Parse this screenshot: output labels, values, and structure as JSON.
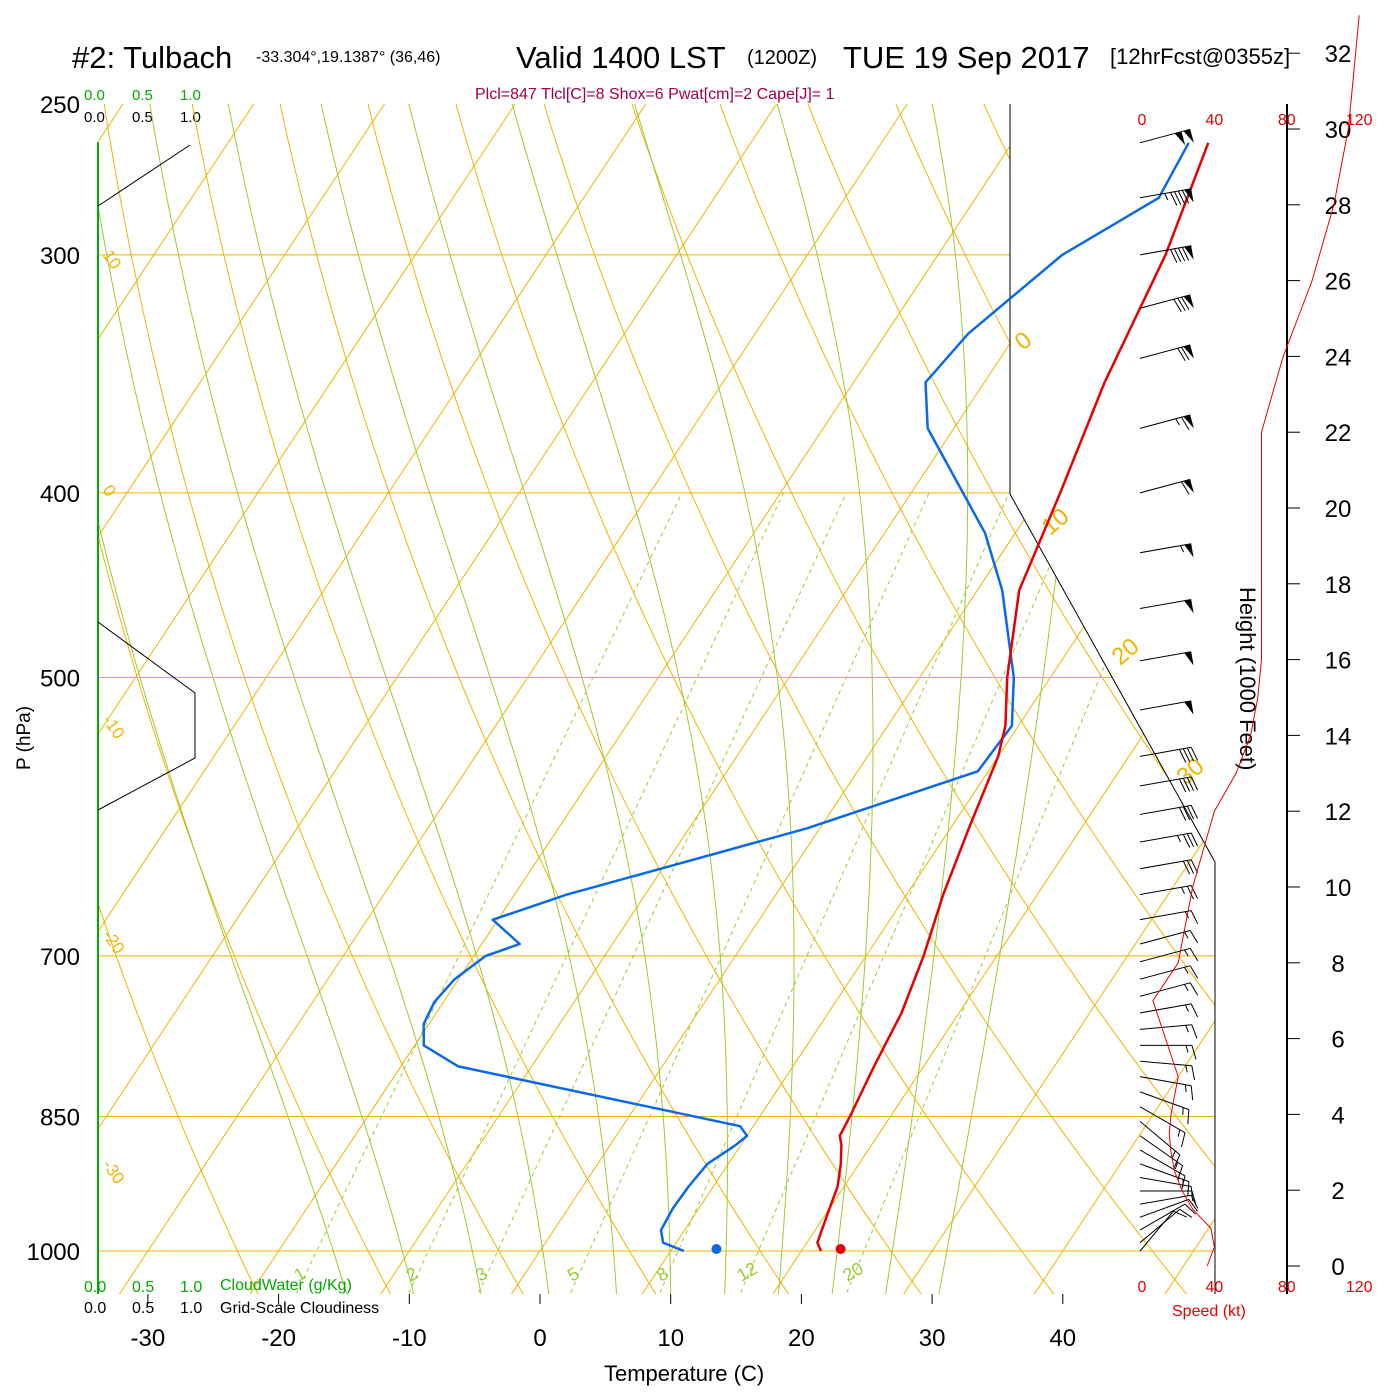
{
  "header": {
    "station": "#2: Tulbach",
    "coords": "-33.304°,19.1387° (36,46)",
    "valid": "Valid 1400 LST",
    "zulu": "(1200Z)",
    "date": "TUE 19 Sep 2017",
    "forecast": "[12hrFcst@0355z]",
    "params": "Plcl=847 Tlcl[C]=8 Shox=6 Pwat[cm]=2 Cape[J]= 1"
  },
  "legend": {
    "cloudwater_label": "CloudWater (g/Kg)",
    "cloudiness_label": "Grid-Scale Cloudiness",
    "scale_ticks": [
      "0.0",
      "0.5",
      "1.0"
    ]
  },
  "colors": {
    "temperature": "#e60000",
    "dewpoint": "#0a6ae6",
    "isotherm": "#f0b400",
    "mixing": "#99cc33",
    "green": "#00aa00",
    "params": "#a0004a"
  },
  "chart_data": {
    "type": "skew-t",
    "xlabel": "Temperature (C)",
    "ylabel": "P (hPa)",
    "x_ticks": [
      "-30",
      "-20",
      "-10",
      "0",
      "10",
      "20",
      "30",
      "40"
    ],
    "pressure_ticks": [
      "250",
      "300",
      "400",
      "500",
      "700",
      "850",
      "1000"
    ],
    "pressure_levels": [
      250,
      300,
      400,
      500,
      700,
      850,
      1000
    ],
    "height_axis_label": "Height (1000 Feet)",
    "height_ticks": [
      "0",
      "2",
      "4",
      "6",
      "8",
      "10",
      "12",
      "14",
      "16",
      "18",
      "20",
      "22",
      "24",
      "26",
      "28",
      "30",
      "32"
    ],
    "speed_axis_label": "Speed (kt)",
    "speed_ticks": [
      "0",
      "40",
      "80",
      "120"
    ],
    "isotherm_labels": [
      "10",
      "0",
      "-10",
      "-20",
      "-30",
      "0",
      "10",
      "20",
      "30"
    ],
    "mixing_ratio_labels": [
      "1",
      "2",
      "3",
      "5",
      "8",
      "12",
      "20"
    ],
    "temperature": {
      "pressure": [
        1000,
        990,
        975,
        950,
        925,
        900,
        880,
        870,
        850,
        800,
        750,
        700,
        650,
        600,
        550,
        530,
        500,
        450,
        400,
        350,
        300,
        262
      ],
      "value": [
        21.5,
        20.8,
        20.5,
        20.0,
        19.5,
        18.6,
        17.7,
        17.1,
        16.9,
        16.2,
        15.6,
        14.4,
        12.8,
        11.4,
        10.0,
        9.0,
        6.7,
        3.2,
        1.4,
        -0.8,
        -2.6,
        -5.0
      ]
    },
    "dewpoint": {
      "pressure": [
        1000,
        990,
        975,
        950,
        925,
        900,
        880,
        870,
        860,
        800,
        780,
        760,
        740,
        720,
        700,
        690,
        670,
        650,
        600,
        560,
        530,
        500,
        450,
        420,
        370,
        350,
        330,
        300,
        280,
        262
      ],
      "value": [
        11.0,
        9.0,
        8.2,
        8.0,
        8.1,
        8.4,
        9.6,
        10.0,
        9.0,
        -15.6,
        -19.3,
        -20.4,
        -20.7,
        -20.3,
        -19.1,
        -17.1,
        -20.4,
        -16.0,
        -1.0,
        9.2,
        9.5,
        7.2,
        1.9,
        -2.3,
        -12.0,
        -14.5,
        -13.7,
        -10.5,
        -6.0,
        -6.5
      ]
    },
    "surface_points": {
      "temperature": 23.0,
      "dewpoint": 13.5
    },
    "wind": {
      "pressure": [
        1000,
        990,
        975,
        960,
        945,
        930,
        915,
        900,
        885,
        870,
        855,
        840,
        825,
        810,
        795,
        780,
        765,
        750,
        735,
        720,
        705,
        690,
        670,
        650,
        630,
        610,
        590,
        570,
        550,
        520,
        490,
        460,
        430,
        400,
        370,
        340,
        320,
        300,
        280,
        262
      ],
      "dir": [
        320,
        310,
        300,
        290,
        280,
        270,
        260,
        250,
        240,
        235,
        230,
        240,
        250,
        260,
        265,
        270,
        275,
        280,
        285,
        285,
        285,
        285,
        280,
        280,
        280,
        280,
        280,
        280,
        280,
        280,
        280,
        280,
        280,
        285,
        285,
        285,
        285,
        280,
        280,
        285
      ],
      "speed": [
        12,
        12,
        12,
        12,
        12,
        12,
        12,
        14,
        14,
        16,
        16,
        14,
        14,
        14,
        16,
        16,
        16,
        16,
        14,
        14,
        14,
        14,
        16,
        26,
        32,
        36,
        38,
        42,
        42,
        48,
        50,
        52,
        55,
        62,
        66,
        72,
        80,
        90,
        95,
        100
      ]
    },
    "speed_profile": {
      "height_kft": [
        0,
        0.5,
        1,
        1.5,
        2,
        2.5,
        3,
        3.5,
        4,
        4.5,
        5,
        6,
        7,
        8,
        9,
        10,
        11,
        12,
        13,
        14,
        15,
        16,
        17,
        18,
        19,
        20,
        21,
        22,
        23,
        24,
        25,
        26,
        27,
        28,
        29,
        30,
        31,
        32,
        33
      ],
      "speed_kt": [
        36,
        40,
        38,
        28,
        22,
        18,
        16,
        15,
        16,
        18,
        20,
        13,
        6,
        20,
        24,
        28,
        34,
        40,
        52,
        60,
        64,
        66,
        66,
        66,
        66,
        66,
        66,
        66,
        72,
        78,
        86,
        94,
        100,
        106,
        110,
        114,
        116,
        118,
        120
      ]
    }
  }
}
